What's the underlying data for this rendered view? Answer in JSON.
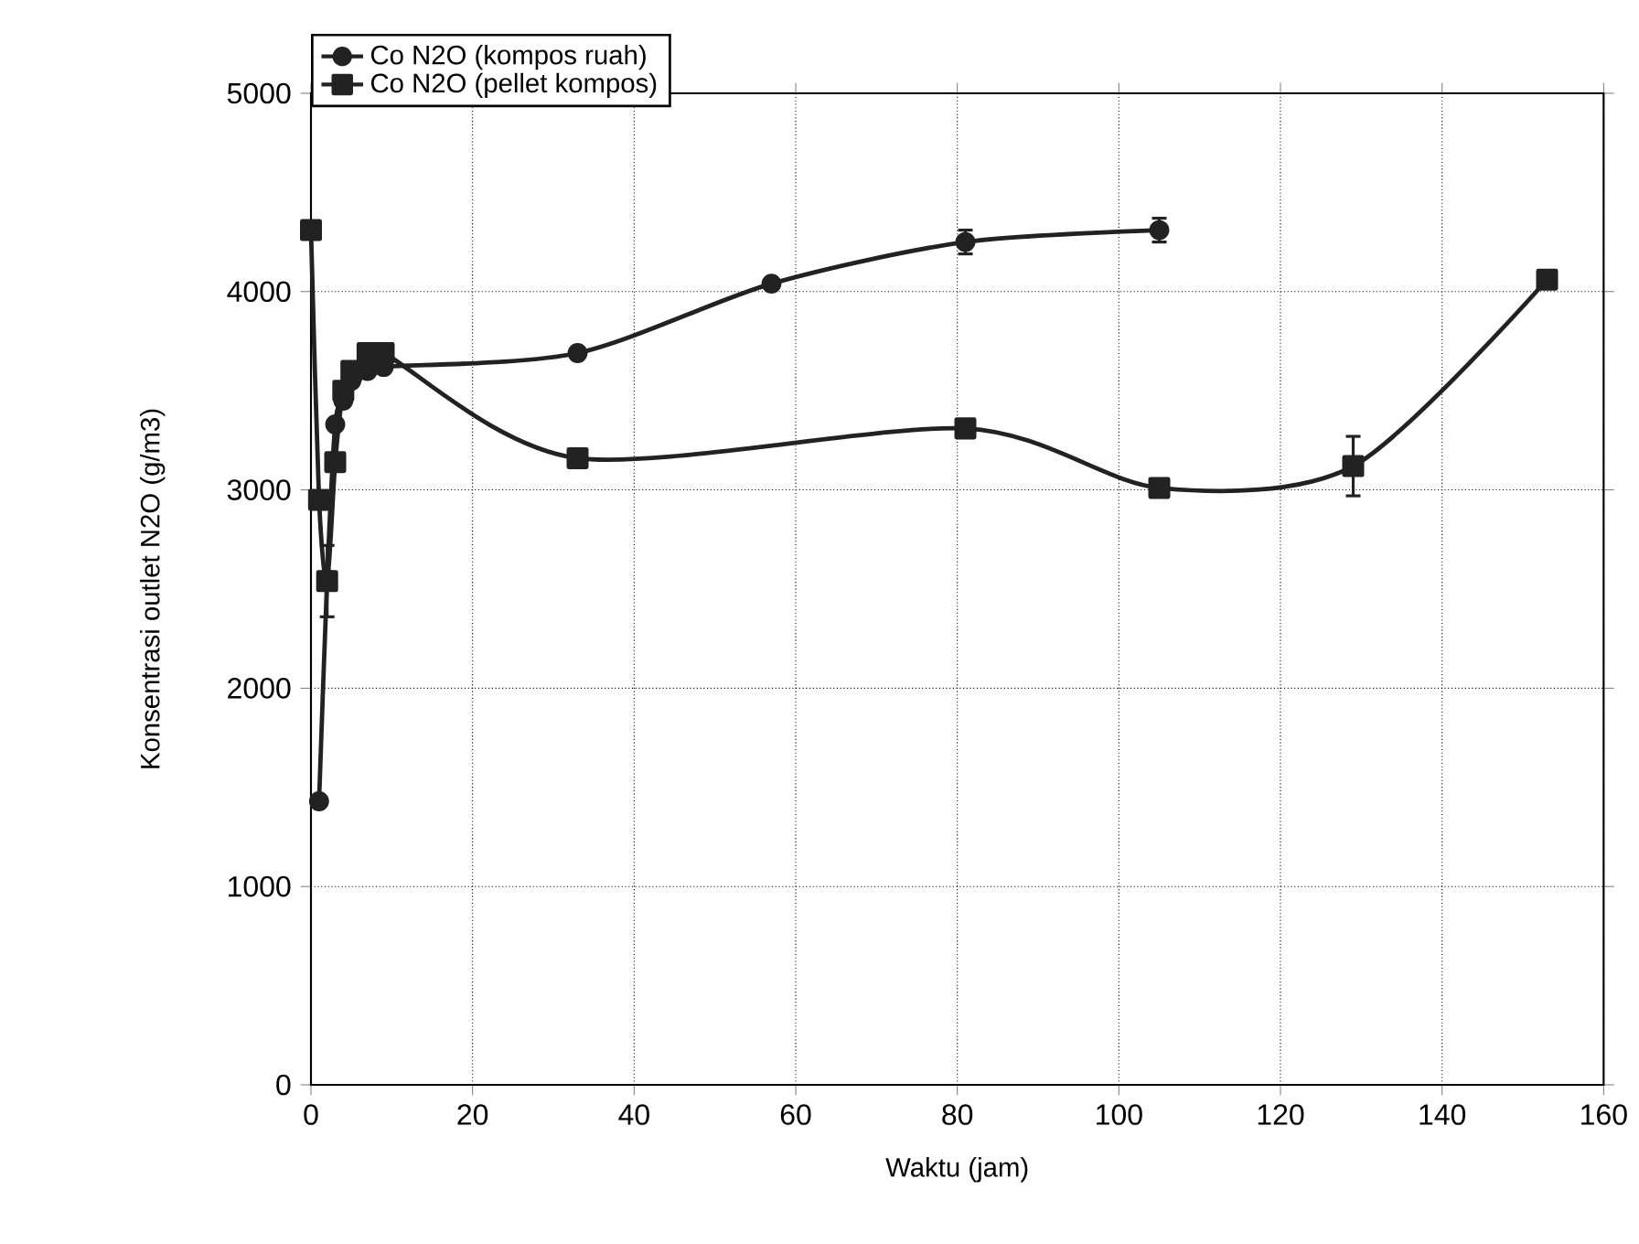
{
  "chart_data": {
    "type": "line",
    "xlabel": "Waktu (jam)",
    "ylabel": "Konsentrasi outlet N2O (g/m3)",
    "xlim": [
      0,
      160
    ],
    "xticks": [
      0,
      20,
      40,
      60,
      80,
      100,
      120,
      140,
      160
    ],
    "ylim": [
      0,
      5000
    ],
    "yticks": [
      0,
      1000,
      2000,
      3000,
      4000,
      5000
    ],
    "grid": true,
    "legend": "top left",
    "line_style": "solid",
    "series": [
      {
        "name": "Co N2O (kompos ruah)",
        "color": "#222222",
        "marker": "circle",
        "x": [
          1,
          2,
          3,
          4,
          5,
          7,
          9,
          33,
          57,
          81,
          105
        ],
        "values": [
          1430,
          2550,
          3330,
          3450,
          3550,
          3600,
          3620,
          3690,
          4040,
          4250,
          4310
        ],
        "errors": [
          null,
          null,
          null,
          null,
          null,
          null,
          null,
          null,
          null,
          60,
          60
        ]
      },
      {
        "name": "Co N2O (pellet kompos)",
        "color": "#222222",
        "marker": "square",
        "x": [
          0,
          1,
          2,
          3,
          4,
          5,
          7,
          9,
          33,
          81,
          105,
          129,
          153
        ],
        "values": [
          4310,
          2950,
          2540,
          3140,
          3500,
          3600,
          3690,
          3690,
          3160,
          3310,
          3010,
          3120,
          4060
        ],
        "errors": [
          null,
          null,
          180,
          null,
          null,
          null,
          null,
          null,
          null,
          null,
          null,
          150,
          40
        ]
      }
    ]
  }
}
